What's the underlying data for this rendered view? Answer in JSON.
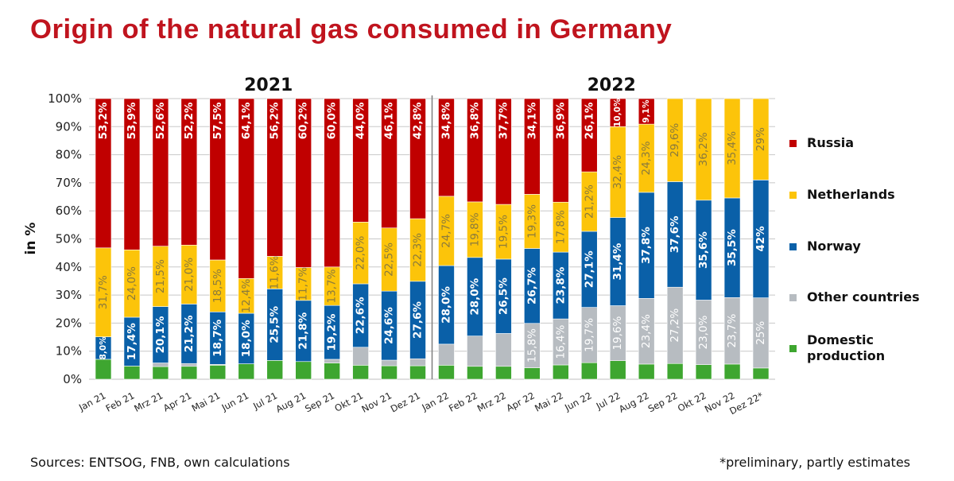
{
  "title": "Origin of the natural gas consumed in Germany",
  "footer": {
    "sources": "Sources: ENTSOG, FNB, own calculations",
    "note": "*preliminary, partly estimates"
  },
  "chart_data": {
    "type": "bar",
    "stacked": true,
    "title": "Origin of the natural gas consumed in Germany",
    "xlabel": "",
    "ylabel": "in %",
    "ylim": [
      0,
      100
    ],
    "yticks": [
      "0%",
      "10%",
      "20%",
      "30%",
      "40%",
      "50%",
      "60%",
      "70%",
      "80%",
      "90%",
      "100%"
    ],
    "grid": true,
    "legend_position": "right",
    "year_groups": [
      {
        "label": "2021",
        "start": 0,
        "end": 11
      },
      {
        "label": "2022",
        "start": 12,
        "end": 23
      }
    ],
    "categories": [
      "Jan 21",
      "Feb 21",
      "Mrz 21",
      "Apr 21",
      "Mai 21",
      "Jun 21",
      "Jul 21",
      "Aug 21",
      "Sep 21",
      "Okt 21",
      "Nov 21",
      "Dez 21",
      "Jan 22",
      "Feb 22",
      "Mrz 22",
      "Apr 22",
      "Mai 22",
      "Jun 22",
      "Jul 22",
      "Aug 22",
      "Sep 22",
      "Okt 22",
      "Nov 22",
      "Dez 22*"
    ],
    "series": [
      {
        "name": "Domestic production",
        "color": "#3ea630",
        "label_color": "#ffffff",
        "values": [
          7.1,
          4.7,
          4.5,
          4.6,
          5.0,
          5.5,
          6.7,
          6.3,
          5.8,
          5.0,
          4.8,
          4.8,
          5.0,
          4.6,
          4.6,
          4.1,
          5.1,
          5.9,
          6.6,
          5.4,
          5.6,
          5.2,
          5.4,
          4.0
        ],
        "labels": [
          null,
          null,
          null,
          null,
          null,
          null,
          null,
          null,
          null,
          null,
          null,
          null,
          null,
          null,
          null,
          null,
          null,
          null,
          null,
          null,
          null,
          null,
          null,
          null
        ]
      },
      {
        "name": "Other countries",
        "color": "#b7bcc1",
        "label_color": "#ffffff",
        "values": [
          0.0,
          0.0,
          1.3,
          1.0,
          0.3,
          0.0,
          0.0,
          0.0,
          1.3,
          6.4,
          2.0,
          2.5,
          7.5,
          10.8,
          11.7,
          15.8,
          16.4,
          19.7,
          19.6,
          23.4,
          27.2,
          23.0,
          23.7,
          25.0
        ],
        "labels": [
          null,
          null,
          null,
          null,
          null,
          null,
          null,
          null,
          null,
          null,
          null,
          null,
          null,
          null,
          null,
          "15,8%",
          "16,4%",
          "19,7%",
          "19,6%",
          "23,4%",
          "27,2%",
          "23,0%",
          "23,7%",
          "25%"
        ]
      },
      {
        "name": "Norway",
        "color": "#0a60a8",
        "label_color": "#ffffff",
        "values": [
          8.0,
          17.4,
          20.1,
          21.2,
          18.7,
          18.0,
          25.5,
          21.8,
          19.2,
          22.6,
          24.6,
          27.6,
          28.0,
          28.0,
          26.5,
          26.7,
          23.8,
          27.1,
          31.4,
          37.8,
          37.6,
          35.6,
          35.5,
          42.0
        ],
        "labels": [
          "8,0%",
          "17,4%",
          "20,1%",
          "21,2%",
          "18,7%",
          "18,0%",
          "25,5%",
          "21,8%",
          "19,2%",
          "22,6%",
          "24,6%",
          "27,6%",
          "28,0%",
          "28,0%",
          "26,5%",
          "26,7%",
          "23,8%",
          "27,1%",
          "31,4%",
          "37,8%",
          "37,6%",
          "35,6%",
          "35,5%",
          "42%"
        ]
      },
      {
        "name": "Netherlands",
        "color": "#fcc40a",
        "label_color": "#8a7a3c",
        "values": [
          31.7,
          24.0,
          21.5,
          21.0,
          18.5,
          12.4,
          11.6,
          11.7,
          13.7,
          22.0,
          22.5,
          22.3,
          24.7,
          19.8,
          19.5,
          19.3,
          17.8,
          21.2,
          32.4,
          24.3,
          29.6,
          36.2,
          35.4,
          29.0
        ],
        "labels": [
          "31,7%",
          "24,0%",
          "21,5%",
          "21,0%",
          "18,5%",
          "12,4%",
          "11,6%",
          "11,7%",
          "13,7%",
          "22,0%",
          "22,5%",
          "22,3%",
          "24,7%",
          "19,8%",
          "19,5%",
          "19,3%",
          "17,8%",
          "21,2%",
          "32,4%",
          "24,3%",
          "29,6%",
          "36,2%",
          "35,4%",
          "29%"
        ]
      },
      {
        "name": "Russia",
        "color": "#c00000",
        "label_color": "#ffffff",
        "values": [
          53.2,
          53.9,
          52.6,
          52.2,
          57.5,
          64.1,
          56.2,
          60.2,
          60.0,
          44.0,
          46.1,
          42.8,
          34.8,
          36.8,
          37.7,
          34.1,
          36.9,
          26.1,
          10.0,
          9.1,
          0.0,
          0.0,
          0.0,
          0.0
        ],
        "labels": [
          "53,2%",
          "53,9%",
          "52,6%",
          "52,2%",
          "57,5%",
          "64,1%",
          "56,2%",
          "60,2%",
          "60,0%",
          "44,0%",
          "46,1%",
          "42,8%",
          "34,8%",
          "36,8%",
          "37,7%",
          "34,1%",
          "36,9%",
          "26,1%",
          "10,0%",
          "9,1%",
          null,
          null,
          null,
          null
        ]
      }
    ],
    "legend": [
      "Russia",
      "Netherlands",
      "Norway",
      "Other countries",
      "Domestic production"
    ]
  }
}
